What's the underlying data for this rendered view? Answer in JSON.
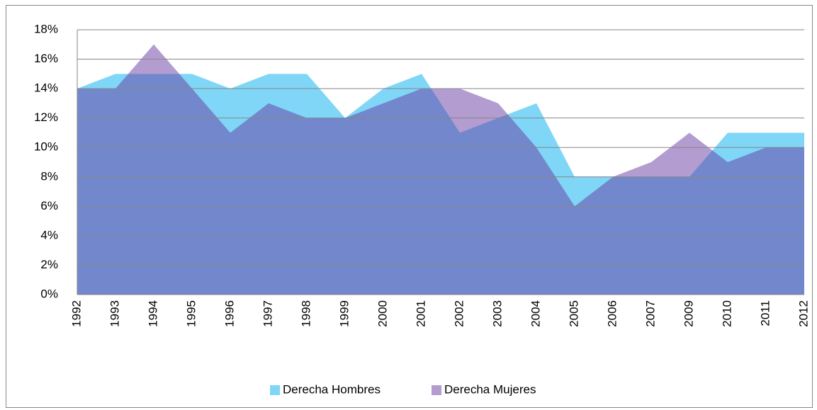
{
  "chart_data": {
    "type": "area",
    "categories": [
      "1992",
      "1993",
      "1994",
      "1995",
      "1996",
      "1997",
      "1998",
      "1999",
      "2000",
      "2001",
      "2002",
      "2003",
      "2004",
      "2005",
      "2006",
      "2007",
      "2009",
      "2010",
      "2011",
      "2012"
    ],
    "series": [
      {
        "name": "Derecha Hombres",
        "color": "#7fd6f6",
        "opacity": 1,
        "values": [
          14,
          15,
          15,
          15,
          14,
          15,
          15,
          12,
          14,
          15,
          11,
          12,
          13,
          8,
          8,
          8,
          8,
          11,
          11,
          11
        ]
      },
      {
        "name": "Derecha Mujeres",
        "color": "#6739a1",
        "opacity": 0.5,
        "values": [
          14,
          14,
          17,
          14,
          11,
          13,
          12,
          12,
          13,
          14,
          14,
          13,
          10,
          6,
          8,
          9,
          11,
          9,
          10,
          10
        ]
      }
    ],
    "ylim": [
      0,
      18
    ],
    "yticks": [
      {
        "value": 0,
        "label": "0%"
      },
      {
        "value": 2,
        "label": "2%"
      },
      {
        "value": 4,
        "label": "4%"
      },
      {
        "value": 6,
        "label": "6%"
      },
      {
        "value": 8,
        "label": "8%"
      },
      {
        "value": 10,
        "label": "10%"
      },
      {
        "value": 12,
        "label": "12%"
      },
      {
        "value": 14,
        "label": "14%"
      },
      {
        "value": 16,
        "label": "16%"
      },
      {
        "value": 18,
        "label": "18%"
      }
    ],
    "grid": true,
    "legend": "bottom"
  }
}
